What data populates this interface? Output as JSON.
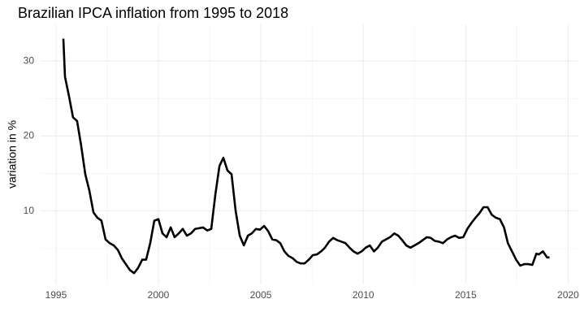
{
  "chart_data": {
    "type": "line",
    "title": "Brazilian IPCA inflation from 1995 to 2018",
    "y_label": "variation in %",
    "xlim": [
      1994.25,
      2020.5
    ],
    "ylim": [
      0.2,
      34.9
    ],
    "xticks": [
      1995,
      2000,
      2005,
      2010,
      2015,
      2020
    ],
    "yticks": [
      10,
      20,
      30
    ],
    "x_minor_ticks": [
      1997.5,
      2002.5,
      2007.5,
      2012.5,
      2017.5
    ],
    "y_minor_ticks": [
      5,
      15,
      25
    ],
    "grid": true,
    "series": [
      {
        "color": "#000000",
        "x": [
          1995.36,
          1995.44,
          1995.63,
          1995.83,
          1996.03,
          1996.23,
          1996.43,
          1996.63,
          1996.83,
          1997.02,
          1997.22,
          1997.42,
          1997.62,
          1997.82,
          1998.02,
          1998.21,
          1998.41,
          1998.61,
          1998.81,
          1999.01,
          1999.21,
          1999.4,
          1999.6,
          1999.8,
          2000.0,
          2000.2,
          2000.4,
          2000.6,
          2000.79,
          2000.99,
          2001.19,
          2001.39,
          2001.59,
          2001.79,
          2001.98,
          2002.18,
          2002.38,
          2002.58,
          2002.78,
          2002.98,
          2003.17,
          2003.37,
          2003.57,
          2003.77,
          2003.97,
          2004.17,
          2004.37,
          2004.56,
          2004.76,
          2004.96,
          2005.16,
          2005.36,
          2005.56,
          2005.75,
          2005.95,
          2006.15,
          2006.35,
          2006.55,
          2006.75,
          2006.94,
          2007.14,
          2007.34,
          2007.54,
          2007.74,
          2007.94,
          2008.13,
          2008.33,
          2008.53,
          2008.73,
          2008.93,
          2009.13,
          2009.33,
          2009.52,
          2009.72,
          2009.92,
          2010.12,
          2010.32,
          2010.52,
          2010.71,
          2010.91,
          2011.11,
          2011.31,
          2011.51,
          2011.71,
          2011.9,
          2012.1,
          2012.3,
          2012.5,
          2012.7,
          2012.9,
          2013.1,
          2013.29,
          2013.49,
          2013.69,
          2013.89,
          2014.09,
          2014.29,
          2014.48,
          2014.68,
          2014.88,
          2015.08,
          2015.28,
          2015.48,
          2015.67,
          2015.87,
          2016.07,
          2016.27,
          2016.47,
          2016.67,
          2016.87,
          2017.06,
          2017.26,
          2017.46,
          2017.66,
          2017.86,
          2018.06,
          2018.25,
          2018.45,
          2018.57,
          2018.77,
          2018.97,
          2019.09
        ],
        "values": [
          33.0,
          27.9,
          25.4,
          22.5,
          22.0,
          18.7,
          14.9,
          12.7,
          9.8,
          9.1,
          8.7,
          6.2,
          5.7,
          5.4,
          4.8,
          3.7,
          2.9,
          2.1,
          1.7,
          2.4,
          3.5,
          3.5,
          5.7,
          8.7,
          8.9,
          7.0,
          6.5,
          7.8,
          6.5,
          7.0,
          7.6,
          6.7,
          7.0,
          7.6,
          7.7,
          7.8,
          7.4,
          7.6,
          12.2,
          16.0,
          17.1,
          15.4,
          14.9,
          10.0,
          6.7,
          5.4,
          6.7,
          7.0,
          7.6,
          7.5,
          8.0,
          7.3,
          6.2,
          6.1,
          5.7,
          4.6,
          4.0,
          3.7,
          3.2,
          3.0,
          3.0,
          3.5,
          4.1,
          4.2,
          4.6,
          5.1,
          5.9,
          6.4,
          6.1,
          5.9,
          5.7,
          5.1,
          4.6,
          4.3,
          4.6,
          5.1,
          5.4,
          4.6,
          5.1,
          5.9,
          6.2,
          6.5,
          7.0,
          6.7,
          6.1,
          5.4,
          5.1,
          5.4,
          5.7,
          6.1,
          6.5,
          6.4,
          6.0,
          5.9,
          5.7,
          6.2,
          6.5,
          6.7,
          6.4,
          6.5,
          7.6,
          8.4,
          9.1,
          9.7,
          10.5,
          10.5,
          9.5,
          9.1,
          8.9,
          7.8,
          5.7,
          4.6,
          3.5,
          2.7,
          2.9,
          2.9,
          2.8,
          4.3,
          4.2,
          4.6,
          3.8,
          3.8
        ]
      }
    ]
  }
}
